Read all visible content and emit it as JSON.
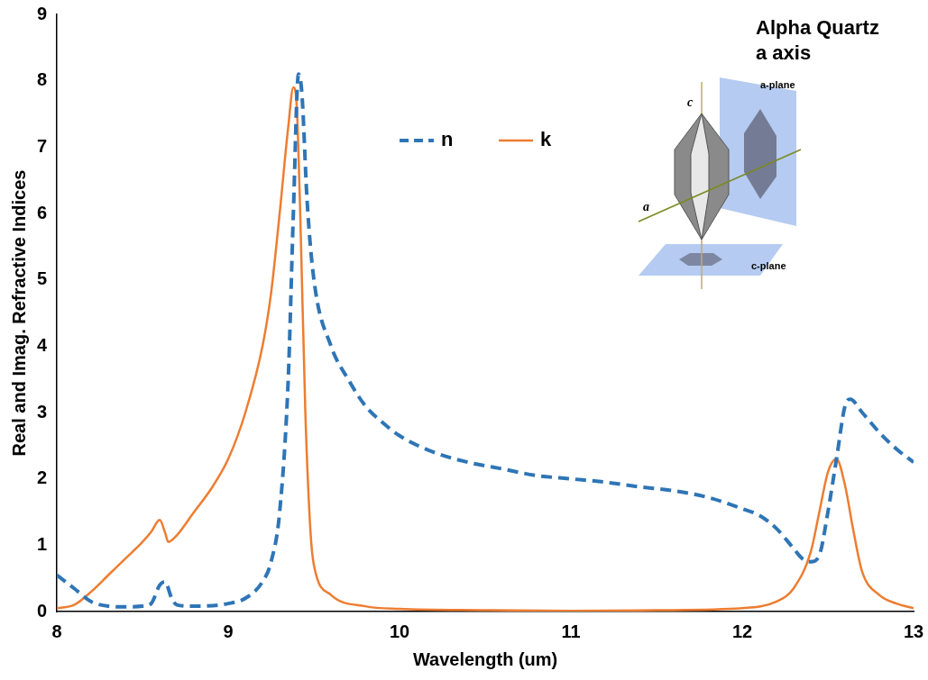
{
  "chart_data": {
    "type": "line",
    "x_label": "Wavelength (um)",
    "y_label": "Real and Imag. Refractive Indices",
    "annotations": [
      "Alpha Quartz",
      "a axis"
    ],
    "inset_labels": [
      "c",
      "a",
      "a-plane",
      "c-plane"
    ],
    "xlim": [
      8,
      13
    ],
    "xticks": [
      8,
      9,
      10,
      11,
      12,
      13
    ],
    "ylim": [
      0,
      9
    ],
    "yticks": [
      0,
      1,
      2,
      3,
      4,
      5,
      6,
      7,
      8,
      9
    ],
    "grid": false,
    "legend": "top",
    "series": [
      {
        "name": "n",
        "color": "#2e75b6",
        "line_style": "dashed",
        "x": [
          8.0,
          8.1,
          8.2,
          8.3,
          8.4,
          8.5,
          8.55,
          8.6,
          8.63,
          8.67,
          8.7,
          8.8,
          9.0,
          9.1,
          9.2,
          9.25,
          9.3,
          9.35,
          9.38,
          9.41,
          9.43,
          9.46,
          9.5,
          9.6,
          9.7,
          9.8,
          9.9,
          10.0,
          10.2,
          10.4,
          10.6,
          10.8,
          11.0,
          11.2,
          11.4,
          11.6,
          11.8,
          12.0,
          12.1,
          12.2,
          12.3,
          12.35,
          12.4,
          12.45,
          12.5,
          12.55,
          12.6,
          12.63,
          12.7,
          12.8,
          12.9,
          13.0
        ],
        "values": [
          0.55,
          0.35,
          0.15,
          0.08,
          0.07,
          0.08,
          0.12,
          0.4,
          0.45,
          0.2,
          0.1,
          0.08,
          0.12,
          0.2,
          0.45,
          0.75,
          1.5,
          3.5,
          6.0,
          8.1,
          7.8,
          6.2,
          5.0,
          4.0,
          3.5,
          3.1,
          2.85,
          2.65,
          2.4,
          2.25,
          2.15,
          2.05,
          2.0,
          1.95,
          1.88,
          1.82,
          1.72,
          1.55,
          1.45,
          1.25,
          0.95,
          0.8,
          0.75,
          0.85,
          1.5,
          2.3,
          3.1,
          3.2,
          3.0,
          2.7,
          2.45,
          2.25
        ]
      },
      {
        "name": "k",
        "color": "#ed7d31",
        "line_style": "solid",
        "x": [
          8.0,
          8.1,
          8.2,
          8.3,
          8.4,
          8.5,
          8.55,
          8.6,
          8.63,
          8.65,
          8.7,
          8.8,
          8.9,
          9.0,
          9.1,
          9.2,
          9.25,
          9.3,
          9.35,
          9.38,
          9.4,
          9.42,
          9.45,
          9.48,
          9.5,
          9.6,
          9.8,
          10.0,
          10.5,
          11.0,
          11.5,
          12.0,
          12.2,
          12.3,
          12.4,
          12.45,
          12.5,
          12.55,
          12.6,
          12.65,
          12.7,
          12.8,
          12.9,
          13.0
        ],
        "values": [
          0.05,
          0.1,
          0.3,
          0.55,
          0.8,
          1.05,
          1.2,
          1.38,
          1.2,
          1.05,
          1.15,
          1.5,
          1.85,
          2.3,
          3.0,
          4.0,
          4.8,
          6.0,
          7.3,
          7.9,
          7.6,
          6.0,
          3.0,
          1.2,
          0.7,
          0.25,
          0.08,
          0.04,
          0.02,
          0.01,
          0.02,
          0.05,
          0.15,
          0.35,
          0.9,
          1.5,
          2.1,
          2.3,
          1.9,
          1.2,
          0.6,
          0.25,
          0.12,
          0.05
        ]
      }
    ]
  }
}
